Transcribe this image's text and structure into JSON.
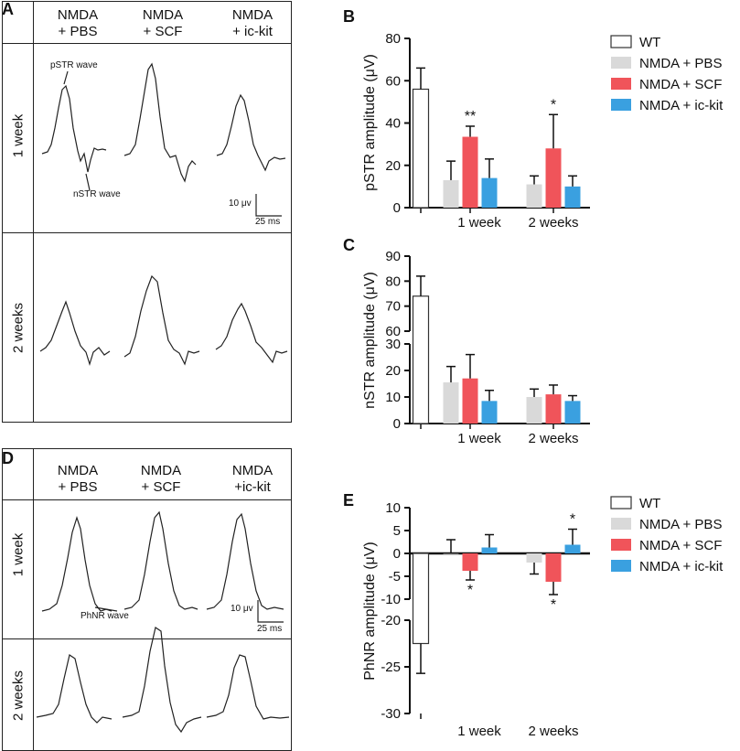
{
  "panels": {
    "A": {
      "letter": "A",
      "columns": [
        "NMDA\n+ PBS",
        "NMDA\n+ SCF",
        "NMDA\n+ ic-kit"
      ],
      "rows": [
        "1 week",
        "2 weeks"
      ],
      "annotations": {
        "pstr": "pSTR wave",
        "nstr": "nSTR wave"
      },
      "scale": {
        "amplitude": "10 μv",
        "time": "25 ms"
      }
    },
    "D": {
      "letter": "D",
      "columns": [
        "NMDA\n+ PBS",
        "NMDA\n+ SCF",
        "NMDA\n+ic-kit"
      ],
      "rows": [
        "1 week",
        "2 weeks"
      ],
      "annotations": {
        "phnr": "PhNR wave"
      },
      "scale": {
        "amplitude": "10 μv",
        "time": "25 ms"
      }
    },
    "B_letter": "B",
    "C_letter": "C",
    "E_letter": "E"
  },
  "colors": {
    "wt": "#ffffff",
    "pbs": "#d9d9d9",
    "scf": "#f0545a",
    "ickit": "#3aa0e0",
    "axis": "#111111"
  },
  "legend": [
    "WT",
    "NMDA + PBS",
    "NMDA + SCF",
    "NMDA + ic-kit"
  ],
  "chart_data": [
    {
      "id": "B",
      "type": "bar",
      "ylabel": "pSTR amplitude (μV)",
      "ylim": [
        0,
        80
      ],
      "yticks": [
        "0",
        "20",
        "40",
        "60",
        "80"
      ],
      "groups": [
        "",
        "1 week",
        "2 weeks"
      ],
      "series": [
        {
          "name": "WT",
          "values": [
            56,
            null,
            null
          ],
          "errors": [
            10,
            null,
            null
          ]
        },
        {
          "name": "NMDA + PBS",
          "values": [
            null,
            13,
            11
          ],
          "errors": [
            null,
            9,
            4
          ]
        },
        {
          "name": "NMDA + SCF",
          "values": [
            null,
            33.5,
            28
          ],
          "errors": [
            null,
            5,
            16
          ]
        },
        {
          "name": "NMDA + ic-kit",
          "values": [
            null,
            14,
            10
          ],
          "errors": [
            null,
            9,
            5
          ]
        }
      ],
      "significance": [
        {
          "group": "1 week",
          "series": "NMDA + SCF",
          "mark": "**"
        },
        {
          "group": "2 weeks",
          "series": "NMDA + SCF",
          "mark": "*"
        }
      ]
    },
    {
      "id": "C",
      "type": "bar",
      "ylabel": "nSTR amplitude (μV)",
      "ylim": [
        0,
        90
      ],
      "axis_break": [
        30,
        60
      ],
      "yticks": [
        "0",
        "10",
        "20",
        "30",
        "60",
        "70",
        "80",
        "90"
      ],
      "groups": [
        "",
        "1 week",
        "2 weeks"
      ],
      "series": [
        {
          "name": "WT",
          "values": [
            74,
            null,
            null
          ],
          "errors": [
            8,
            null,
            null
          ]
        },
        {
          "name": "NMDA + PBS",
          "values": [
            null,
            15.5,
            10
          ],
          "errors": [
            null,
            6,
            3
          ]
        },
        {
          "name": "NMDA + SCF",
          "values": [
            null,
            17,
            11
          ],
          "errors": [
            null,
            9,
            3.5
          ]
        },
        {
          "name": "NMDA + ic-kit",
          "values": [
            null,
            8.5,
            8.5
          ],
          "errors": [
            null,
            4,
            2
          ]
        }
      ]
    },
    {
      "id": "E",
      "type": "bar",
      "ylabel": "PhNR amplitude (μV)",
      "ylim": [
        -30,
        10
      ],
      "axis_break": [
        -20,
        -10
      ],
      "yticks": [
        "-30",
        "-25",
        "-20",
        "-10",
        "-5",
        "0",
        "5",
        "10"
      ],
      "groups": [
        "",
        "1 week",
        "2 weeks"
      ],
      "series": [
        {
          "name": "WT",
          "values": [
            -22.5,
            null,
            null
          ],
          "errors": [
            3.2,
            null,
            null
          ]
        },
        {
          "name": "NMDA + PBS",
          "values": [
            null,
            0,
            -2
          ],
          "errors": [
            null,
            3,
            2.5
          ]
        },
        {
          "name": "NMDA + SCF",
          "values": [
            null,
            -3.8,
            -6.2
          ],
          "errors": [
            null,
            2,
            2.8
          ]
        },
        {
          "name": "NMDA + ic-kit",
          "values": [
            null,
            1.3,
            1.9
          ],
          "errors": [
            null,
            2.8,
            3.4
          ]
        }
      ],
      "significance": [
        {
          "group": "1 week",
          "series": "NMDA + SCF",
          "mark": "*"
        },
        {
          "group": "2 weeks",
          "series": "NMDA + SCF",
          "mark": "*"
        },
        {
          "group": "2 weeks",
          "series": "NMDA + ic-kit",
          "mark": "*"
        }
      ]
    }
  ]
}
